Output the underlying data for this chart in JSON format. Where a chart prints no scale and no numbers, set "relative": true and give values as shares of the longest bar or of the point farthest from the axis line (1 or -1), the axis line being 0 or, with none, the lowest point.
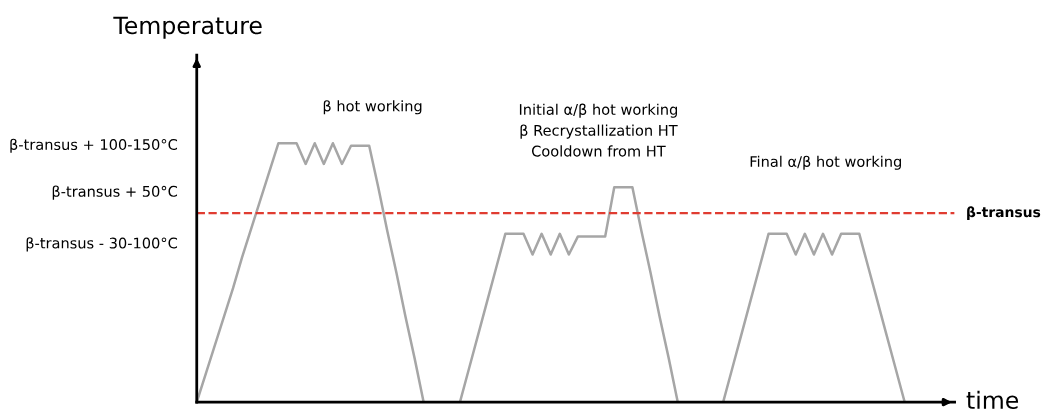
{
  "chart_data": {
    "type": "line",
    "relative": true,
    "ylabel": "Temperature",
    "xlabel": "time",
    "categories": [
      null,
      null,
      null,
      null,
      null,
      null,
      null,
      null,
      null,
      null,
      null,
      null,
      null,
      null,
      null,
      null,
      null,
      null,
      null,
      null,
      null,
      null,
      null,
      null,
      null,
      null,
      null,
      null,
      null,
      null,
      null,
      null,
      null,
      null,
      null,
      null,
      null,
      null,
      null,
      null,
      null,
      null,
      null,
      null,
      null,
      null,
      null,
      null,
      null,
      null,
      null,
      null,
      null,
      null,
      null,
      null,
      null,
      null,
      null,
      null,
      null,
      null,
      null,
      null,
      null,
      null,
      null,
      null,
      null,
      null,
      null,
      null,
      null,
      null,
      null,
      null,
      null,
      null,
      null
    ],
    "legend": false,
    "marker": "none",
    "line_style": "solid",
    "series": [
      {
        "color": "#a6a6a6",
        "values": [
          0,
          0.11,
          0.22,
          0.33,
          0.44,
          0.56,
          0.67,
          0.78,
          0.89,
          1.0,
          1.0,
          1.0,
          0.92,
          1.0,
          0.92,
          1.0,
          0.92,
          0.99,
          0.99,
          0.99,
          0.83,
          0.66,
          0.5,
          0.33,
          0.17,
          0,
          0,
          0,
          0,
          0,
          0.13,
          0.26,
          0.39,
          0.52,
          0.65,
          0.65,
          0.65,
          0.57,
          0.65,
          0.57,
          0.65,
          0.57,
          0.64,
          0.64,
          0.64,
          0.64,
          0.83,
          0.83,
          0.83,
          0.66,
          0.5,
          0.33,
          0.17,
          0,
          0,
          0,
          0,
          0,
          0,
          0.13,
          0.26,
          0.39,
          0.52,
          0.65,
          0.65,
          0.65,
          0.57,
          0.65,
          0.57,
          0.65,
          0.57,
          0.65,
          0.65,
          0.65,
          0.52,
          0.39,
          0.26,
          0.13,
          0
        ]
      }
    ],
    "ref_lines": [
      {
        "axis": "y",
        "value": 0.73,
        "label": "β-transus",
        "color": "#e03c31",
        "line_style": "dashed"
      }
    ],
    "annotations": [
      "β-transus + 100-150°C",
      "β-transus + 50°C",
      "β-transus - 30-100°C",
      "β hot working",
      "Initial α/β hot working\nβ Recrystallization HT\nCooldown from HT",
      "Final α/β hot working"
    ]
  }
}
